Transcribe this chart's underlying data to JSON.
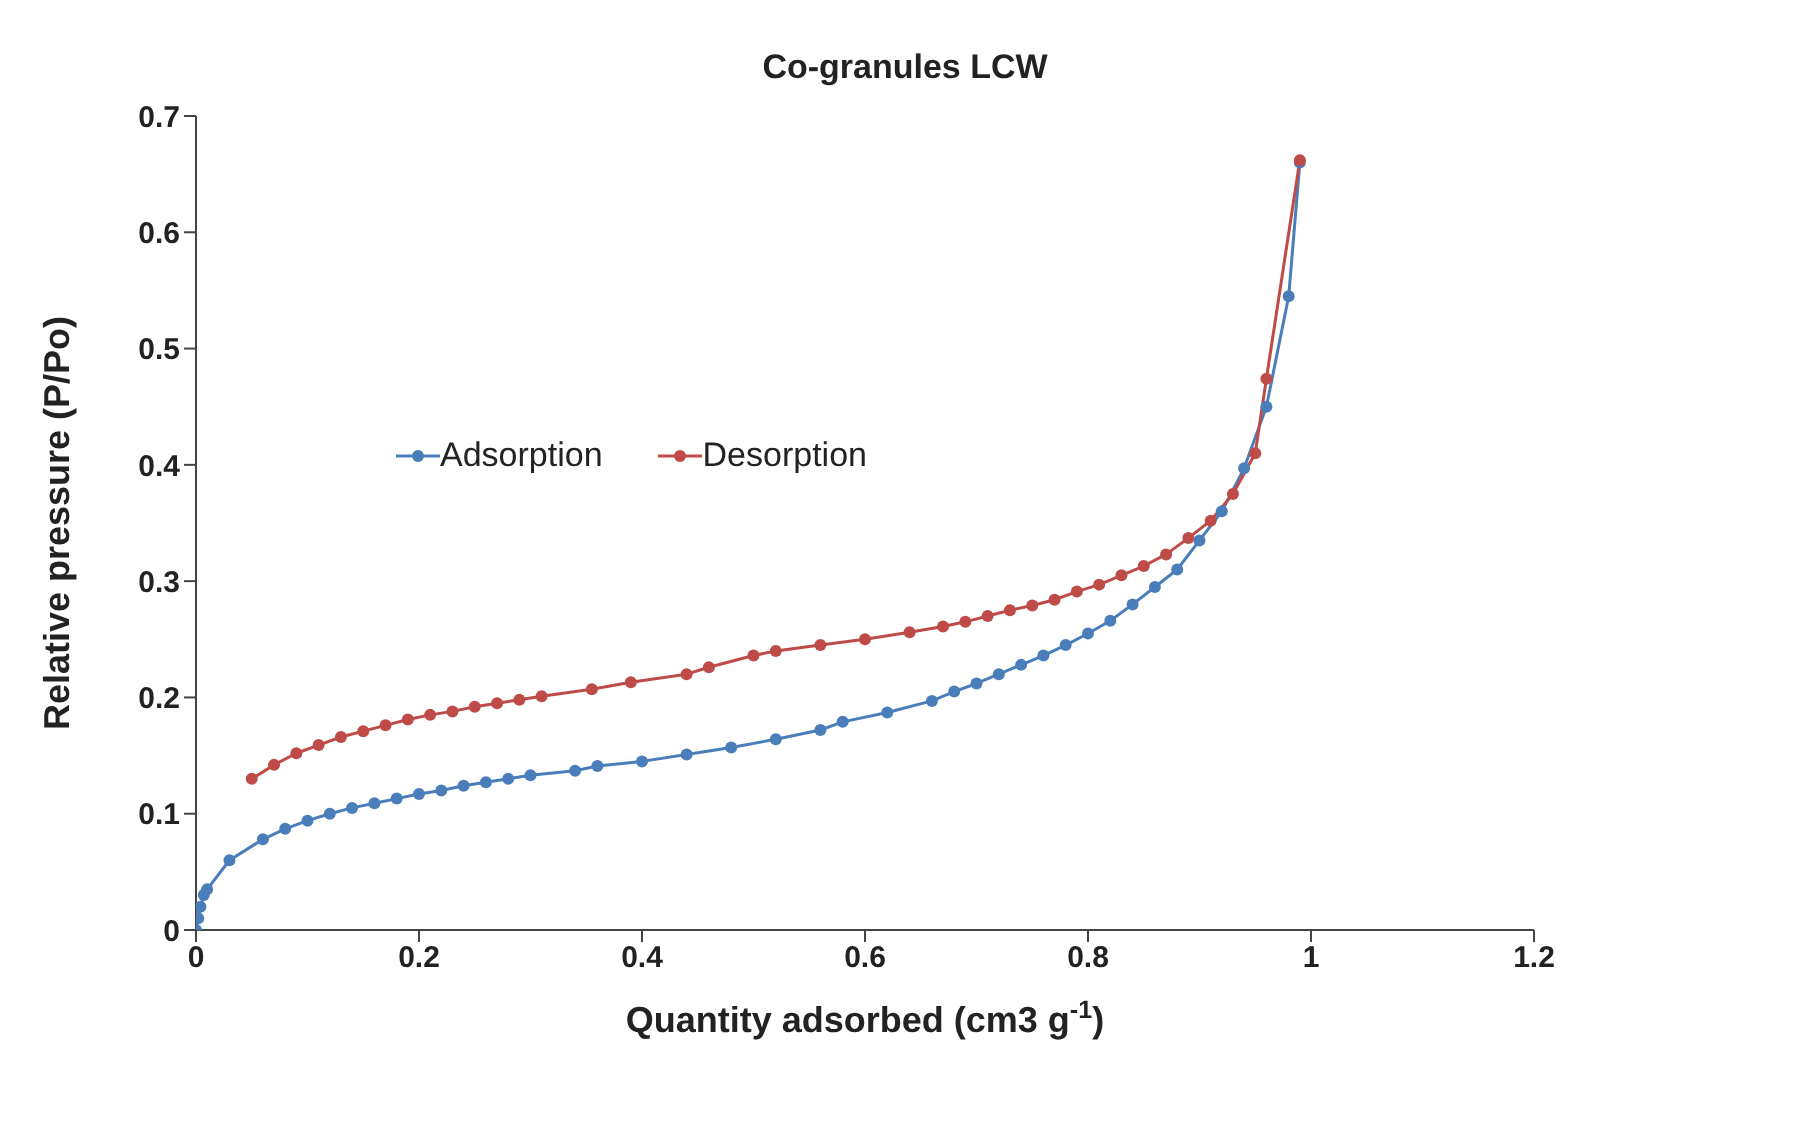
{
  "chart_data": {
    "type": "line",
    "title": "Co-granules LCW",
    "xlabel": "Quantity adsorbed (cm3 g$^{-1}$)",
    "ylabel": "Relative pressure (P/Po)",
    "xlim": [
      0,
      1.2
    ],
    "xticks": [
      0,
      0.2,
      0.4,
      0.6,
      0.8,
      1,
      1.2
    ],
    "ylim": [
      0,
      0.7
    ],
    "yticks": [
      0,
      0.1,
      0.2,
      0.3,
      0.4,
      0.5,
      0.6,
      0.7
    ],
    "grid": false,
    "legend": "left",
    "marker": "circle",
    "line_style": "solid",
    "series": [
      {
        "name": "Adsorption",
        "color": "#4a7ebb",
        "x": [
          0,
          0.002,
          0.004,
          0.007,
          0.01,
          0.03,
          0.06,
          0.08,
          0.1,
          0.12,
          0.14,
          0.16,
          0.18,
          0.2,
          0.22,
          0.24,
          0.26,
          0.28,
          0.3,
          0.34,
          0.36,
          0.4,
          0.44,
          0.48,
          0.52,
          0.56,
          0.58,
          0.62,
          0.66,
          0.68,
          0.7,
          0.72,
          0.74,
          0.76,
          0.78,
          0.8,
          0.82,
          0.84,
          0.86,
          0.88,
          0.9,
          0.92,
          0.94,
          0.96,
          0.98,
          0.99
        ],
        "values": [
          0,
          0.01,
          0.02,
          0.03,
          0.035,
          0.06,
          0.078,
          0.087,
          0.094,
          0.1,
          0.105,
          0.109,
          0.113,
          0.117,
          0.12,
          0.124,
          0.127,
          0.13,
          0.133,
          0.137,
          0.141,
          0.145,
          0.151,
          0.157,
          0.164,
          0.172,
          0.179,
          0.187,
          0.197,
          0.205,
          0.212,
          0.22,
          0.228,
          0.236,
          0.245,
          0.255,
          0.266,
          0.28,
          0.295,
          0.31,
          0.335,
          0.36,
          0.397,
          0.45,
          0.545,
          0.66
        ]
      },
      {
        "name": "Desorption",
        "color": "#be4b48",
        "x": [
          0.05,
          0.07,
          0.09,
          0.11,
          0.13,
          0.15,
          0.17,
          0.19,
          0.21,
          0.23,
          0.25,
          0.27,
          0.29,
          0.31,
          0.355,
          0.39,
          0.44,
          0.46,
          0.5,
          0.52,
          0.56,
          0.6,
          0.64,
          0.67,
          0.69,
          0.71,
          0.73,
          0.75,
          0.77,
          0.79,
          0.81,
          0.83,
          0.85,
          0.87,
          0.89,
          0.91,
          0.93,
          0.95,
          0.96,
          0.99
        ],
        "values": [
          0.13,
          0.142,
          0.152,
          0.159,
          0.166,
          0.171,
          0.176,
          0.181,
          0.185,
          0.188,
          0.192,
          0.195,
          0.198,
          0.201,
          0.207,
          0.213,
          0.22,
          0.226,
          0.236,
          0.24,
          0.245,
          0.25,
          0.256,
          0.261,
          0.265,
          0.27,
          0.275,
          0.279,
          0.284,
          0.291,
          0.297,
          0.305,
          0.313,
          0.323,
          0.337,
          0.352,
          0.375,
          0.41,
          0.474,
          0.662
        ]
      }
    ]
  }
}
